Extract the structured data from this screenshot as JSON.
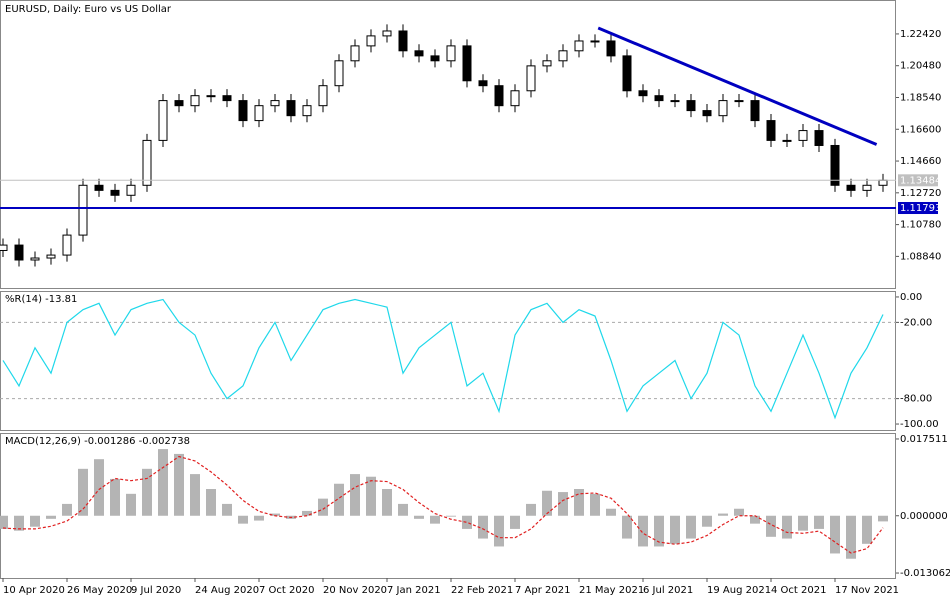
{
  "chart_data": [
    {
      "type": "candlestick",
      "title": "EURUSD, Daily:  Euro vs US Dollar",
      "categories": [
        "10 Apr 2020",
        null,
        null,
        null,
        "26 May 2020",
        null,
        null,
        null,
        "9 Jul 2020",
        null,
        null,
        null,
        "24 Aug 2020",
        null,
        null,
        null,
        "7 Oct 2020",
        null,
        null,
        null,
        "20 Nov 2020",
        null,
        null,
        null,
        "7 Jan 2021",
        null,
        null,
        null,
        "22 Feb 2021",
        null,
        null,
        null,
        "7 Apr 2021",
        null,
        null,
        null,
        "21 May 2021",
        null,
        null,
        null,
        "6 Jul 2021",
        null,
        null,
        null,
        "19 Aug 2021",
        null,
        null,
        null,
        "4 Oct 2021",
        null,
        null,
        null,
        "17 Nov 2021",
        null,
        null,
        null
      ],
      "open": [
        1.092,
        1.0953,
        1.0862,
        1.0874,
        1.0892,
        1.1014,
        1.1318,
        1.1287,
        1.1257,
        1.1318,
        1.1592,
        1.1835,
        1.1804,
        1.1865,
        1.1865,
        1.1835,
        1.1713,
        1.1804,
        1.1835,
        1.1743,
        1.1804,
        1.1926,
        1.2078,
        1.2169,
        1.223,
        1.226,
        1.2139,
        1.2108,
        1.2078,
        1.2169,
        1.1956,
        1.1926,
        1.1804,
        1.1895,
        1.2047,
        1.2078,
        1.2139,
        1.2199,
        1.2199,
        1.2108,
        1.1895,
        1.1865,
        1.1835,
        1.1835,
        1.1774,
        1.1743,
        1.1835,
        1.1835,
        1.1713,
        1.1592,
        1.1592,
        1.1652,
        1.1561,
        1.1318,
        1.1287,
        1.1318
      ],
      "high": [
        1.0993,
        1.0993,
        1.0914,
        1.0932,
        1.1054,
        1.1358,
        1.1358,
        1.1327,
        1.1358,
        1.1632,
        1.1875,
        1.1875,
        1.1905,
        1.1905,
        1.1905,
        1.1875,
        1.1844,
        1.1875,
        1.1875,
        1.1844,
        1.1966,
        1.2118,
        1.2209,
        1.227,
        1.23,
        1.23,
        1.2179,
        1.2148,
        1.2209,
        1.2209,
        1.1996,
        1.1966,
        1.1935,
        1.2087,
        1.2118,
        1.2179,
        1.2239,
        1.2239,
        1.2239,
        1.2148,
        1.1935,
        1.1905,
        1.1875,
        1.1875,
        1.1814,
        1.1875,
        1.1875,
        1.1875,
        1.1753,
        1.1632,
        1.1692,
        1.1692,
        1.1601,
        1.1358,
        1.1358,
        1.1388
      ],
      "low": [
        1.088,
        1.0822,
        1.0822,
        1.0834,
        1.0852,
        1.0974,
        1.1247,
        1.1217,
        1.1217,
        1.1278,
        1.1552,
        1.1764,
        1.1764,
        1.1825,
        1.1795,
        1.1673,
        1.1673,
        1.1764,
        1.1703,
        1.1703,
        1.1764,
        1.1886,
        1.2038,
        1.2129,
        1.219,
        1.2099,
        1.2068,
        1.2038,
        1.2038,
        1.1916,
        1.1886,
        1.1764,
        1.1764,
        1.1855,
        1.2007,
        1.2038,
        1.2099,
        1.2159,
        1.2068,
        1.1855,
        1.1825,
        1.1795,
        1.1795,
        1.1734,
        1.1703,
        1.1703,
        1.1795,
        1.1673,
        1.1552,
        1.1552,
        1.1552,
        1.1521,
        1.1278,
        1.1247,
        1.1247,
        1.1278
      ],
      "close": [
        1.0953,
        1.0862,
        1.0874,
        1.0892,
        1.1014,
        1.1318,
        1.1287,
        1.1257,
        1.1318,
        1.1592,
        1.1835,
        1.1804,
        1.1865,
        1.1865,
        1.1835,
        1.1713,
        1.1804,
        1.1835,
        1.1743,
        1.1804,
        1.1926,
        1.2078,
        1.2169,
        1.223,
        1.226,
        1.2139,
        1.2108,
        1.2078,
        1.2169,
        1.1956,
        1.1926,
        1.1804,
        1.1895,
        1.2047,
        1.2078,
        1.2139,
        1.2199,
        1.2199,
        1.2108,
        1.1895,
        1.1865,
        1.1835,
        1.1835,
        1.1774,
        1.1743,
        1.1835,
        1.1835,
        1.1713,
        1.1592,
        1.1592,
        1.1652,
        1.1561,
        1.1318,
        1.1287,
        1.1318,
        1.13484
      ],
      "color": "#000000",
      "ylim": [
        1.0691,
        1.2443
      ],
      "yticks": [
        {
          "value": 1.2242,
          "label": "1.22420"
        },
        {
          "value": 1.2048,
          "label": "1.20480"
        },
        {
          "value": 1.1854,
          "label": "1.18540"
        },
        {
          "value": 1.166,
          "label": "1.16600"
        },
        {
          "value": 1.1466,
          "label": "1.14660"
        },
        {
          "value": 1.1272,
          "label": "1.12720"
        },
        {
          "value": 1.1078,
          "label": "1.10780"
        },
        {
          "value": 1.0884,
          "label": "1.08840"
        }
      ],
      "current_price": {
        "value": 1.13484,
        "label": "1.13484",
        "color": "#c0c0c0"
      },
      "hline": {
        "value": 1.11793,
        "label": "1.11793",
        "color": "#0000c0"
      },
      "trendline": {
        "x": [
          37.2,
          54.6
        ],
        "values": [
          1.2278,
          1.1567
        ],
        "color": "#0000c0"
      }
    },
    {
      "type": "line",
      "title": "%R(14) -13.81",
      "values": [
        -50,
        -70,
        -40,
        -60,
        -20,
        -10,
        -5,
        -30,
        -10,
        -5,
        -2,
        -20,
        -30,
        -60,
        -80,
        -70,
        -40,
        -20,
        -50,
        -30,
        -10,
        -5,
        -2,
        -5,
        -8,
        -60,
        -40,
        -30,
        -20,
        -70,
        -60,
        -90,
        -30,
        -10,
        -5,
        -20,
        -10,
        -15,
        -50,
        -90,
        -70,
        -60,
        -50,
        -80,
        -60,
        -20,
        -30,
        -70,
        -90,
        -60,
        -30,
        -60,
        -95,
        -60,
        -40,
        -13.81
      ],
      "color": "#1fd8ea",
      "ylim": [
        -104.7,
        3.9
      ],
      "yticks": [
        {
          "value": 0,
          "label": "0.00"
        },
        {
          "value": -20,
          "label": "-20.00"
        },
        {
          "value": -80,
          "label": "-80.00"
        },
        {
          "value": -100,
          "label": "-100.00"
        }
      ],
      "levels": [
        -20,
        -80
      ]
    },
    {
      "type": "macd",
      "title": "MACD(12,26,9) -0.001286 -0.002738",
      "histogram": [
        -0.003,
        -0.0034,
        -0.0025,
        -0.0007,
        0.0027,
        0.0107,
        0.0129,
        0.0084,
        0.005,
        0.0107,
        0.0152,
        0.0141,
        0.0095,
        0.0061,
        0.0027,
        -0.0018,
        -0.0011,
        0.0005,
        -0.0007,
        0.0011,
        0.0039,
        0.0073,
        0.0095,
        0.0089,
        0.0061,
        0.0027,
        -0.0007,
        -0.0018,
        -0.0002,
        -0.003,
        -0.0052,
        -0.007,
        -0.003,
        0.0027,
        0.0057,
        0.0054,
        0.0061,
        0.005,
        0.0016,
        -0.0052,
        -0.007,
        -0.007,
        -0.0064,
        -0.0052,
        -0.0025,
        0.0005,
        0.0016,
        -0.0018,
        -0.0048,
        -0.0052,
        -0.0034,
        -0.003,
        -0.0086,
        -0.0098,
        -0.0064,
        -0.001286
      ],
      "signal": [
        -0.0028,
        -0.003,
        -0.003,
        -0.0024,
        -0.0012,
        0.0015,
        0.006,
        0.0085,
        0.008,
        0.0085,
        0.011,
        0.0135,
        0.0125,
        0.01,
        0.007,
        0.0035,
        0.001,
        0,
        -0.0004,
        0,
        0.0015,
        0.004,
        0.0065,
        0.008,
        0.0078,
        0.006,
        0.003,
        0.0005,
        -0.0008,
        -0.0015,
        -0.003,
        -0.005,
        -0.005,
        -0.003,
        0.0005,
        0.0035,
        0.005,
        0.0052,
        0.004,
        0.0005,
        -0.004,
        -0.006,
        -0.0065,
        -0.006,
        -0.0045,
        -0.002,
        0,
        0,
        -0.002,
        -0.0038,
        -0.004,
        -0.0035,
        -0.006,
        -0.0085,
        -0.0075,
        -0.002738
      ],
      "histogram_color": "#b4b4b4",
      "signal_color": "#e02020",
      "ylim": [
        -0.014194,
        0.018643
      ],
      "yticks": [
        0.017511,
        {
          "value": 0,
          "label": "0.000000"
        },
        -0.013062
      ]
    }
  ]
}
